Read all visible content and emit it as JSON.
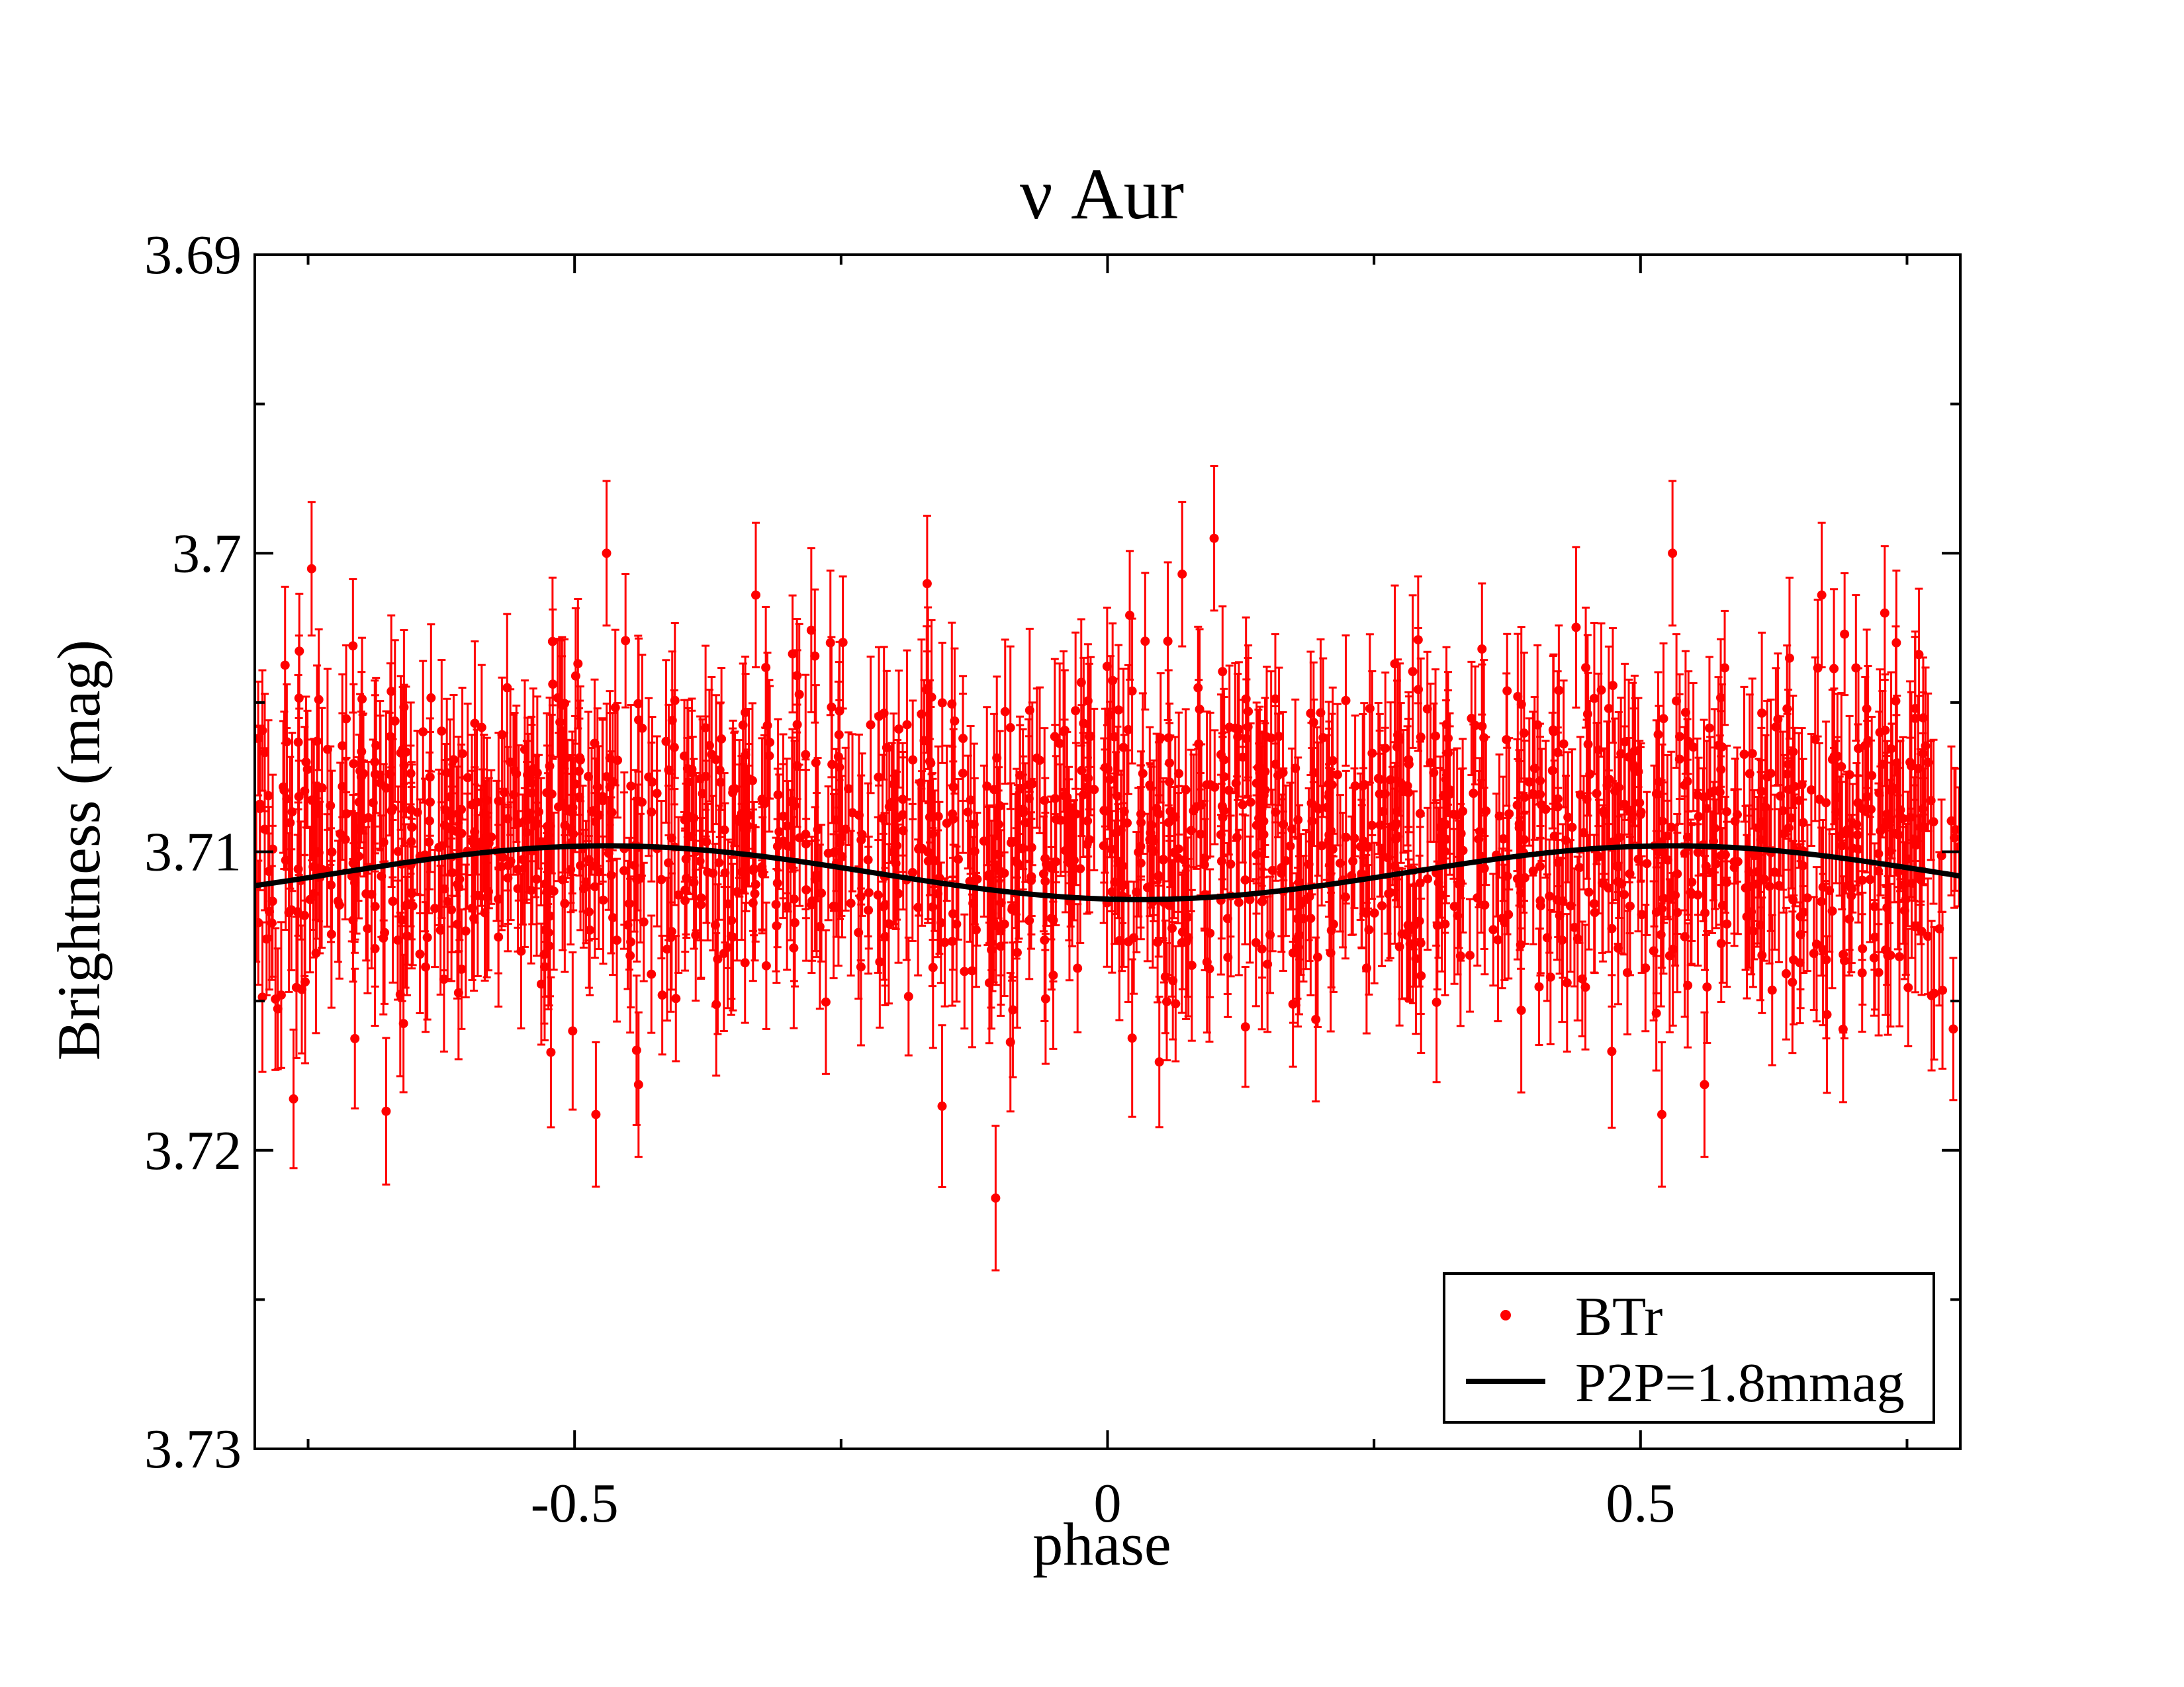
{
  "chart_data": {
    "type": "scatter",
    "title": "ν Aur",
    "xlabel": "phase",
    "ylabel": "Brightness (mag)",
    "xlim": [
      -0.8,
      0.8
    ],
    "ylim": [
      3.69,
      3.73
    ],
    "y_inverted": true,
    "x_ticks": [
      -0.5,
      0,
      0.5
    ],
    "x_tick_labels": [
      "-0.5",
      "0",
      "0.5"
    ],
    "x_minor_ticks": [
      -0.75,
      -0.25,
      0.25,
      0.75
    ],
    "y_ticks": [
      3.69,
      3.7,
      3.71,
      3.72,
      3.73
    ],
    "y_tick_labels": [
      "3.69",
      "3.7",
      "3.71",
      "3.72",
      "3.73"
    ],
    "y_minor_ticks": [
      3.695,
      3.705,
      3.715,
      3.725
    ],
    "legend_position": "bottom-right",
    "series": [
      {
        "name": "BTr",
        "kind": "points_with_errorbars",
        "color": "#ff0000",
        "mean": 3.7095,
        "scatter_sigma": 0.0027,
        "typical_error": 0.0022,
        "approx_points": 1400,
        "phase_range": [
          -0.8,
          0.8
        ],
        "notable_outliers": [
          {
            "x": -0.47,
            "y": 3.7
          },
          {
            "x": -0.33,
            "y": 3.7014
          },
          {
            "x": -0.26,
            "y": 3.703
          },
          {
            "x": 0.07,
            "y": 3.7007
          },
          {
            "x": 0.1,
            "y": 3.6995
          },
          {
            "x": 0.53,
            "y": 3.7
          },
          {
            "x": 0.67,
            "y": 3.7014
          },
          {
            "x": 0.74,
            "y": 3.703
          },
          {
            "x": -0.105,
            "y": 3.7216
          },
          {
            "x": -0.48,
            "y": 3.7188
          },
          {
            "x": 0.52,
            "y": 3.7188
          },
          {
            "x": -0.44,
            "y": 3.7178
          },
          {
            "x": 0.56,
            "y": 3.7178
          }
        ]
      },
      {
        "name": "P2P=1.8mmag",
        "kind": "line",
        "color": "#000000",
        "model": "sinusoid",
        "mean": 3.7107,
        "peak_to_peak": 0.0018,
        "period_phase": 1.0,
        "minimum_mag_at_phase": [
          -0.47,
          0.53
        ],
        "maximum_mag_at_phase": [
          0.03
        ]
      }
    ]
  }
}
